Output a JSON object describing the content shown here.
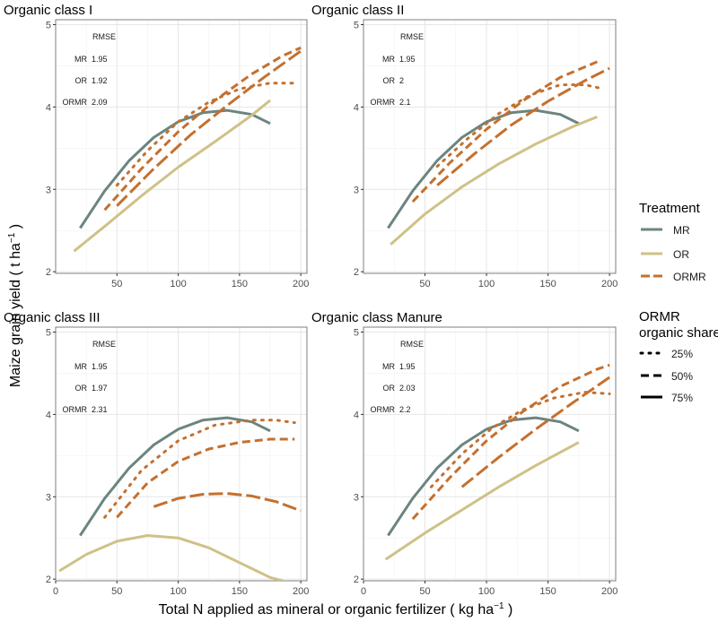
{
  "figure": {
    "ylabel": "Maize grain yield",
    "ylabel_unit_base": "t ha",
    "ylabel_unit_sup": "−1",
    "xlabel": "Total N applied as mineral or organic fertilizer",
    "xlabel_unit_base": "kg ha",
    "xlabel_unit_sup": "−1"
  },
  "legend": {
    "treatment_title": "Treatment",
    "treatment_items": [
      {
        "key": "MR",
        "label": "MR"
      },
      {
        "key": "OR",
        "label": "OR"
      },
      {
        "key": "ORMR",
        "label": "ORMR"
      }
    ],
    "share_title_line1": "ORMR",
    "share_title_line2": "organic share",
    "share_items": [
      {
        "label": "25%",
        "style": "dotted"
      },
      {
        "label": "50%",
        "style": "dashed"
      },
      {
        "label": "75%",
        "style": "longdash"
      }
    ]
  },
  "colors": {
    "MR": "#6b8580",
    "OR": "#cfc187",
    "ORMR": "#c4702f",
    "grid_major": "#e6e6e6",
    "grid_minor": "#f2f2f2",
    "panel_border": "#7f7f7f",
    "tick_text": "#4d4d4d"
  },
  "chart_data": [
    {
      "type": "line",
      "title": "Organic class I",
      "xlim": [
        0,
        205
      ],
      "ylim": [
        1.98,
        5.06
      ],
      "xticks": [
        50,
        100,
        150,
        200
      ],
      "yticks": [
        2,
        3,
        4,
        5
      ],
      "rmse": {
        "header": "RMSE",
        "rows": [
          [
            "MR",
            "1.95"
          ],
          [
            "OR",
            "1.92"
          ],
          [
            "ORMR",
            "2.09"
          ]
        ]
      },
      "series": [
        {
          "name": "MR",
          "style": "solid",
          "x": [
            20,
            40,
            60,
            80,
            100,
            120,
            140,
            160,
            175
          ],
          "y": [
            2.53,
            2.98,
            3.35,
            3.63,
            3.82,
            3.93,
            3.96,
            3.91,
            3.8
          ]
        },
        {
          "name": "OR",
          "style": "solid",
          "x": [
            15,
            40,
            70,
            100,
            130,
            160,
            175
          ],
          "y": [
            2.25,
            2.55,
            2.92,
            3.27,
            3.58,
            3.9,
            4.08
          ]
        },
        {
          "name": "ORMR 25%",
          "style": "dotted",
          "x": [
            50,
            75,
            100,
            125,
            150,
            175,
            195
          ],
          "y": [
            3.05,
            3.47,
            3.82,
            4.06,
            4.22,
            4.29,
            4.29
          ]
        },
        {
          "name": "ORMR 50%",
          "style": "dashed",
          "x": [
            40,
            70,
            100,
            130,
            160,
            185,
            200
          ],
          "y": [
            2.75,
            3.25,
            3.7,
            4.08,
            4.4,
            4.62,
            4.72
          ]
        },
        {
          "name": "ORMR 75%",
          "style": "longdash",
          "x": [
            50,
            80,
            110,
            140,
            170,
            200
          ],
          "y": [
            2.8,
            3.25,
            3.66,
            4.02,
            4.36,
            4.68
          ]
        }
      ]
    },
    {
      "type": "line",
      "title": "Organic class II",
      "xlim": [
        0,
        205
      ],
      "ylim": [
        1.98,
        5.06
      ],
      "xticks": [
        50,
        100,
        150,
        200
      ],
      "yticks": [
        2,
        3,
        4,
        5
      ],
      "rmse": {
        "header": "RMSE",
        "rows": [
          [
            "MR",
            "1.95"
          ],
          [
            "OR",
            "2"
          ],
          [
            "ORMR",
            "2.1"
          ]
        ]
      },
      "series": [
        {
          "name": "MR",
          "style": "solid",
          "x": [
            20,
            40,
            60,
            80,
            100,
            120,
            140,
            160,
            175
          ],
          "y": [
            2.53,
            2.98,
            3.35,
            3.63,
            3.82,
            3.93,
            3.96,
            3.91,
            3.8
          ]
        },
        {
          "name": "OR",
          "style": "solid",
          "x": [
            22,
            50,
            80,
            110,
            140,
            170,
            190
          ],
          "y": [
            2.33,
            2.7,
            3.03,
            3.31,
            3.55,
            3.76,
            3.88
          ]
        },
        {
          "name": "ORMR 25%",
          "style": "dotted",
          "x": [
            60,
            85,
            110,
            135,
            160,
            180,
            195
          ],
          "y": [
            3.28,
            3.62,
            3.92,
            4.14,
            4.27,
            4.27,
            4.22
          ]
        },
        {
          "name": "ORMR 50%",
          "style": "dashed",
          "x": [
            40,
            70,
            100,
            130,
            160,
            190
          ],
          "y": [
            2.85,
            3.32,
            3.73,
            4.08,
            4.36,
            4.55
          ]
        },
        {
          "name": "ORMR 75%",
          "style": "longdash",
          "x": [
            60,
            90,
            120,
            150,
            180,
            200
          ],
          "y": [
            3.05,
            3.43,
            3.78,
            4.07,
            4.32,
            4.47
          ]
        }
      ]
    },
    {
      "type": "line",
      "title": "Organic class III",
      "xlim": [
        0,
        205
      ],
      "ylim": [
        1.98,
        5.06
      ],
      "xticks": [
        0,
        50,
        100,
        150,
        200
      ],
      "yticks": [
        2,
        3,
        4,
        5
      ],
      "rmse": {
        "header": "RMSE",
        "rows": [
          [
            "MR",
            "1.95"
          ],
          [
            "OR",
            "1.97"
          ],
          [
            "ORMR",
            "2.31"
          ]
        ]
      },
      "series": [
        {
          "name": "MR",
          "style": "solid",
          "x": [
            20,
            40,
            60,
            80,
            100,
            120,
            140,
            160,
            175
          ],
          "y": [
            2.53,
            2.98,
            3.35,
            3.63,
            3.82,
            3.93,
            3.96,
            3.91,
            3.8
          ]
        },
        {
          "name": "OR",
          "style": "solid",
          "x": [
            3,
            25,
            50,
            75,
            100,
            125,
            150,
            175,
            185
          ],
          "y": [
            2.1,
            2.3,
            2.46,
            2.53,
            2.5,
            2.38,
            2.2,
            2.02,
            1.98
          ]
        },
        {
          "name": "ORMR 25%",
          "style": "dotted",
          "x": [
            40,
            70,
            100,
            130,
            160,
            180,
            195
          ],
          "y": [
            2.75,
            3.32,
            3.68,
            3.87,
            3.93,
            3.93,
            3.9
          ]
        },
        {
          "name": "ORMR 50%",
          "style": "dashed",
          "x": [
            50,
            75,
            100,
            125,
            150,
            175,
            195
          ],
          "y": [
            2.75,
            3.17,
            3.43,
            3.58,
            3.66,
            3.7,
            3.7
          ]
        },
        {
          "name": "ORMR 75%",
          "style": "longdash",
          "x": [
            80,
            100,
            120,
            140,
            160,
            180,
            200
          ],
          "y": [
            2.88,
            2.98,
            3.03,
            3.04,
            3.01,
            2.94,
            2.83
          ]
        }
      ]
    },
    {
      "type": "line",
      "title": "Organic class Manure",
      "xlim": [
        0,
        205
      ],
      "ylim": [
        1.98,
        5.06
      ],
      "xticks": [
        0,
        50,
        100,
        150,
        200
      ],
      "yticks": [
        2,
        3,
        4,
        5
      ],
      "rmse": {
        "header": "RMSE",
        "rows": [
          [
            "MR",
            "1.95"
          ],
          [
            "OR",
            "2.03"
          ],
          [
            "ORMR",
            "2.2"
          ]
        ]
      },
      "series": [
        {
          "name": "MR",
          "style": "solid",
          "x": [
            20,
            40,
            60,
            80,
            100,
            120,
            140,
            160,
            175
          ],
          "y": [
            2.53,
            2.98,
            3.35,
            3.63,
            3.82,
            3.93,
            3.96,
            3.91,
            3.8
          ]
        },
        {
          "name": "OR",
          "style": "solid",
          "x": [
            18,
            50,
            80,
            110,
            140,
            175
          ],
          "y": [
            2.24,
            2.56,
            2.84,
            3.12,
            3.38,
            3.66
          ]
        },
        {
          "name": "ORMR 25%",
          "style": "dotted",
          "x": [
            55,
            80,
            105,
            130,
            155,
            180,
            200
          ],
          "y": [
            3.12,
            3.52,
            3.84,
            4.06,
            4.2,
            4.27,
            4.25
          ]
        },
        {
          "name": "ORMR 50%",
          "style": "dashed",
          "x": [
            40,
            70,
            100,
            130,
            160,
            190,
            200
          ],
          "y": [
            2.73,
            3.23,
            3.68,
            4.04,
            4.34,
            4.55,
            4.6
          ]
        },
        {
          "name": "ORMR 75%",
          "style": "longdash",
          "x": [
            80,
            110,
            140,
            170,
            200
          ],
          "y": [
            3.12,
            3.48,
            3.82,
            4.14,
            4.45
          ]
        }
      ]
    }
  ]
}
